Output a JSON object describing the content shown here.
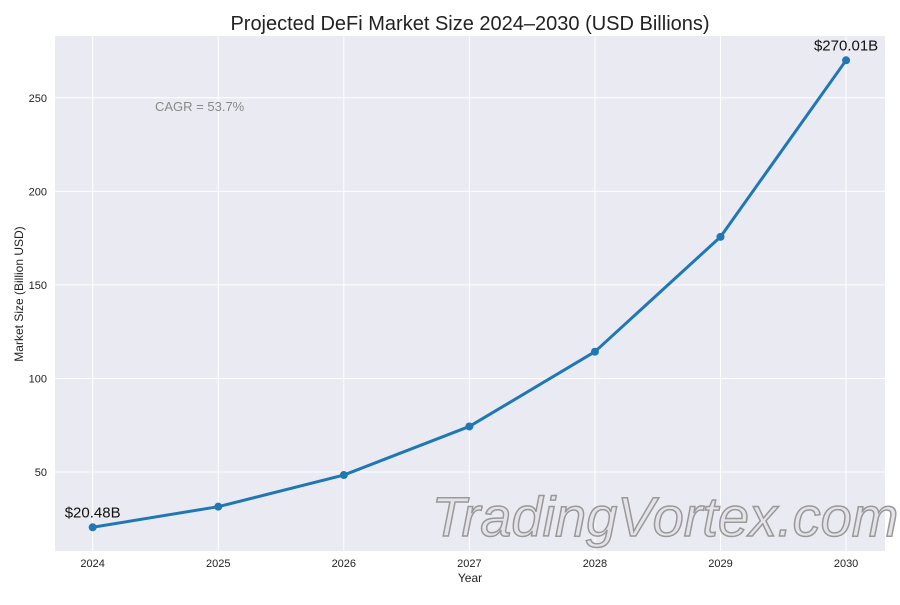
{
  "chart_data": {
    "type": "line",
    "title": "Projected DeFi Market Size 2024–2030 (USD Billions)",
    "xlabel": "Year",
    "ylabel": "Market Size (Billion USD)",
    "x": [
      2024,
      2025,
      2026,
      2027,
      2028,
      2029,
      2030
    ],
    "x_tick_labels": [
      "2024",
      "2025",
      "2026",
      "2027",
      "2028",
      "2029",
      "2030"
    ],
    "y": [
      20.48,
      31.48,
      48.38,
      74.36,
      114.3,
      175.68,
      270.01
    ],
    "y_ticks": [
      50,
      100,
      150,
      200,
      250
    ],
    "y_tick_labels": [
      "50",
      "100",
      "150",
      "200",
      "250"
    ],
    "xlim": [
      2023.7,
      2030.31
    ],
    "ylim": [
      7.8,
      283
    ],
    "grid": true,
    "line_color": "#1f77b4",
    "background_color": "#eaeaf2",
    "annotations": {
      "start_label": "$20.48B",
      "end_label": "$270.01B",
      "cagr": "CAGR = 53.7%"
    },
    "watermark": "TradingVortex.com"
  }
}
